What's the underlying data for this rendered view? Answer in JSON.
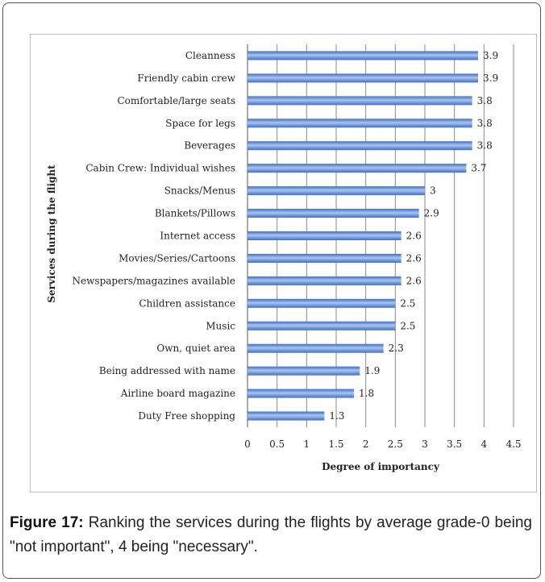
{
  "chart_data": {
    "type": "bar",
    "orientation": "horizontal",
    "categories": [
      "Cleanness",
      "Friendly cabin crew",
      "Comfortable/large  seats",
      "Space for legs",
      "Beverages",
      "Cabin Crew:  Individual wishes",
      "Snacks/Menus",
      "Blankets/Pillows",
      "Internet access",
      "Movies/Series/Cartoons",
      "Newspapers/magazines  available",
      "Children assistance",
      "Music",
      "Own, quiet area",
      "Being addressed  with name",
      "Airline board magazine",
      "Duty Free shopping"
    ],
    "values": [
      3.9,
      3.9,
      3.8,
      3.8,
      3.8,
      3.7,
      3,
      2.9,
      2.6,
      2.6,
      2.6,
      2.5,
      2.5,
      2.3,
      1.9,
      1.8,
      1.3
    ],
    "value_labels": [
      "3.9",
      "3.9",
      "3.8",
      "3.8",
      "3.8",
      "3.7",
      "3",
      "2.9",
      "2.6",
      "2.6",
      "2.6",
      "2.5",
      "2.5",
      "2.3",
      "1.9",
      "1.8",
      "1.3"
    ],
    "xlabel": "Degree of importancy",
    "ylabel": "Services during the flight",
    "xlim": [
      0,
      4.5
    ],
    "xticks": [
      "0",
      "0.5",
      "1",
      "1.5",
      "2",
      "2.5",
      "3",
      "3.5",
      "4",
      "4.5"
    ],
    "grid": true,
    "bar_color": "#5b87d6"
  },
  "caption": {
    "label": "Figure 17:",
    "text": " Ranking the services during the flights by average grade-0 being \"not important\", 4 being \"necessary\"."
  }
}
